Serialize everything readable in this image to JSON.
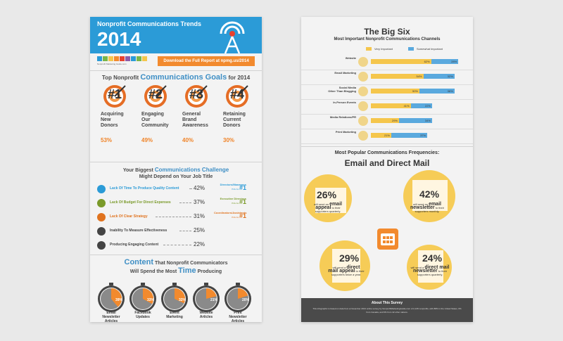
{
  "left": {
    "header_title": "Nonprofit Communications Trends",
    "header_year": "2014",
    "logo_text": "Nonprofit Marketing Guide.com",
    "download": "Download the Full Report at npmg.us/2014",
    "goals_title_pre": "Top Nonprofit",
    "goals_title_big": "Communications Goals",
    "goals_title_post": "for 2014",
    "goals": [
      {
        "num": "#1",
        "label": "Acquiring\nNew\nDonors",
        "pct": "53%"
      },
      {
        "num": "#2",
        "label": "Engaging\nOur\nCommunity",
        "pct": "49%"
      },
      {
        "num": "#3",
        "label": "General\nBrand\nAwareness",
        "pct": "40%"
      },
      {
        "num": "#4",
        "label": "Retaining\nCurrent\nDonors",
        "pct": "30%"
      }
    ],
    "challenge_title_pre": "Your Biggest",
    "challenge_title_big": "Communications Challenge",
    "challenge_title_2": "Might Depend on Your Job Title",
    "challenges": [
      {
        "label": "Lack Of Time To Produce Quality Content",
        "pct": "42%",
        "note1": "Directors/Managers",
        "note2": "Pick As",
        "rank": "#1",
        "color": "#2b9bd7",
        "icon": "clock-icon"
      },
      {
        "label": "Lack Of Budget For Direct Expenses",
        "pct": "37%",
        "note1": "Executive Directors",
        "note2": "Pick As",
        "rank": "#1",
        "color": "#7a9a2a",
        "icon": "money-bag-icon"
      },
      {
        "label": "Lack Of Clear Strategy",
        "pct": "31%",
        "note1": "Coordinators/Assistants",
        "note2": "Pick As",
        "rank": "#1",
        "color": "#e0731f",
        "icon": "signpost-icon"
      },
      {
        "label": "Inability To Measure Effectiveness",
        "pct": "25%",
        "note1": "",
        "note2": "",
        "rank": "",
        "color": "#444",
        "icon": "ruler-icon"
      },
      {
        "label": "Producing Engaging Content",
        "pct": "22%",
        "note1": "",
        "note2": "",
        "rank": "",
        "color": "#444",
        "icon": "lightbulb-icon"
      }
    ],
    "content_title_1a": "Content",
    "content_title_1b": "That Nonprofit Communicators",
    "content_title_2a": "Will Spend the Most",
    "content_title_2b": "Time",
    "content_title_2c": "Producing",
    "content": [
      {
        "label": "Email\nNewsletter\nArticles",
        "pct": "39%",
        "value": 39
      },
      {
        "label": "Facebook\nUpdates",
        "pct": "33%",
        "value": 33
      },
      {
        "label": "Event\nMarketing",
        "pct": "32%",
        "value": 32
      },
      {
        "label": "Website\nArticles",
        "pct": "21%",
        "value": 21
      },
      {
        "label": "Print\nNewsletter\nArticles",
        "pct": "20%",
        "value": 20
      }
    ]
  },
  "right": {
    "title": "The Big Six",
    "subtitle": "Most Important Nonprofit Communications Channels",
    "legend_very": "Very Important",
    "legend_somewhat": "Somewhat Important",
    "colors": {
      "very": "#f5c64c",
      "somewhat": "#5aa9de",
      "accent": "#f28a2e"
    },
    "channels": [
      {
        "label": "Website",
        "very": 62,
        "somewhat": 28,
        "very_txt": "62%",
        "somewhat_txt": "28%",
        "icon": "website-icon"
      },
      {
        "label": "Email Marketing",
        "very": 54,
        "somewhat": 32,
        "very_txt": "54%",
        "somewhat_txt": "32%",
        "icon": "email-icon"
      },
      {
        "label": "Social Media\nOther Than Blogging",
        "very": 50,
        "somewhat": 36,
        "very_txt": "50%",
        "somewhat_txt": "36%",
        "icon": "social-media-icon"
      },
      {
        "label": "In-Person Events",
        "very": 41,
        "somewhat": 22,
        "very_txt": "41%",
        "somewhat_txt": "22%",
        "icon": "event-icon"
      },
      {
        "label": "Media Relations/PR",
        "very": 29,
        "somewhat": 34,
        "very_txt": "29%",
        "somewhat_txt": "34%",
        "icon": "microphone-icon"
      },
      {
        "label": "Print Marketing",
        "very": 21,
        "somewhat": 37,
        "very_txt": "21%",
        "somewhat_txt": "37%",
        "icon": "print-icon"
      }
    ],
    "freq_title": "Most Popular Communications Frequencies:",
    "freq_title2": "Email and Direct Mail",
    "freqs": [
      {
        "pct": "26%",
        "pre": "will send an",
        "big": "email appeal",
        "post": "to their supporters quarterly."
      },
      {
        "pct": "42%",
        "pre": "will send an",
        "big": "email newsletter",
        "post": "to their supporters monthly."
      },
      {
        "pct": "29%",
        "pre": "will send a",
        "big": "direct mail appeal",
        "post": "to their supporters twice a year."
      },
      {
        "pct": "24%",
        "pre": "will send a",
        "big": "direct mail newsletter",
        "post": "to their supporters quarterly."
      }
    ],
    "about_title": "About This Survey",
    "about_text": "This infographic is based on data from a November 2013 online survey by NonprofitMarketingGuide.com of 2,135 nonprofits, with 88% in the United States, 6% from Canada, and 6% from 42 other nations."
  }
}
